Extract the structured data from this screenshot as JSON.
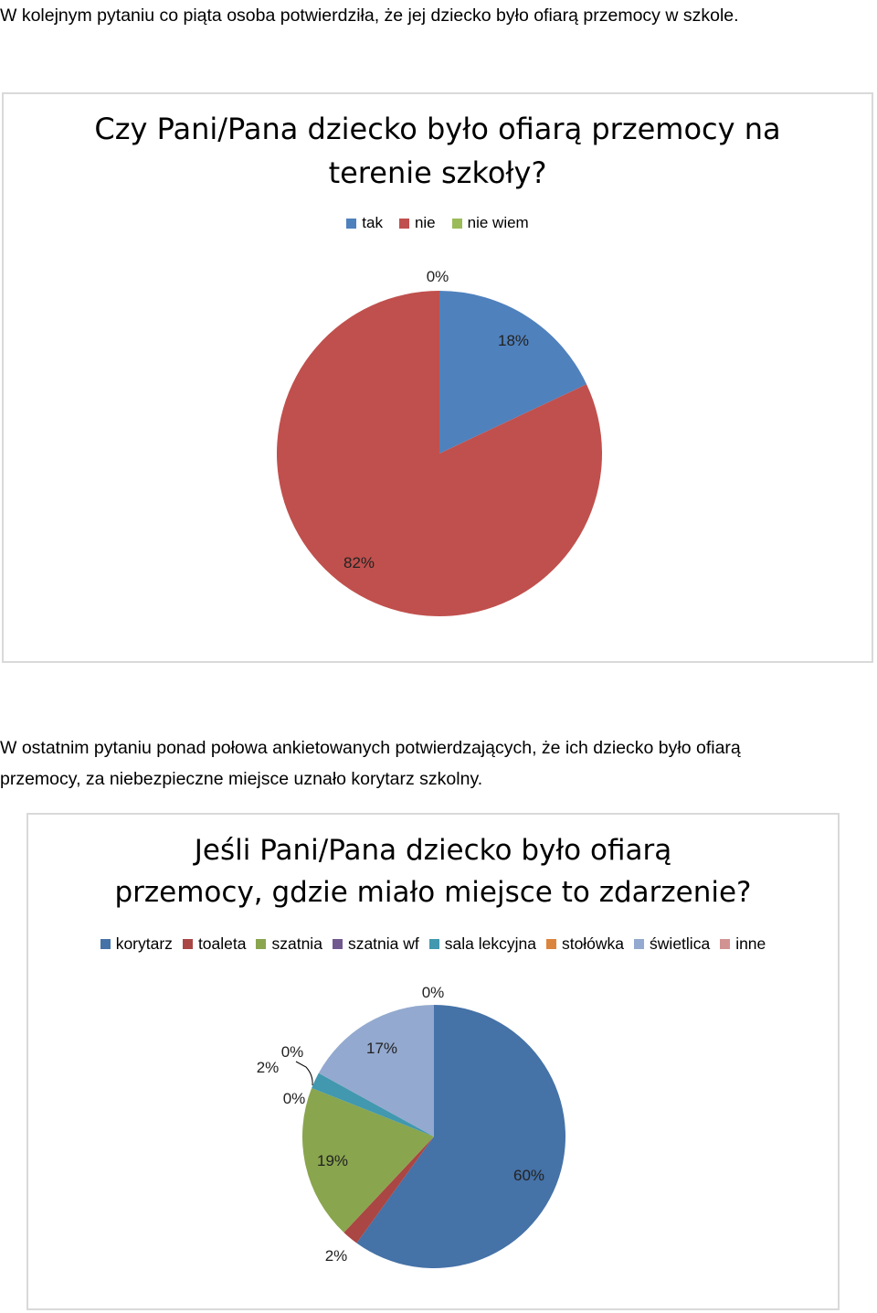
{
  "intro_text": "W kolejnym pytaniu co piąta osoba potwierdziła, że jej dziecko było ofiarą przemocy w szkole.",
  "between_text_line1": "W ostatnim pytaniu ponad połowa ankietowanych potwierdzających, że ich dziecko było ofiarą",
  "between_text_line2": "przemocy, za niebezpieczne miejsce uznało korytarz szkolny.",
  "chart_data": [
    {
      "type": "pie",
      "title_line1": "Czy Pani/Pana dziecko było ofiarą przemocy na",
      "title_line2": "terenie szkoły?",
      "categories": [
        "tak",
        "nie",
        "nie wiem"
      ],
      "values": [
        18,
        82,
        0
      ],
      "value_labels": [
        "18%",
        "82%",
        "0%"
      ],
      "colors": [
        "#4f81bd",
        "#c0504d",
        "#9bbb59"
      ],
      "legend_position": "top",
      "unit": "%"
    },
    {
      "type": "pie",
      "title_line1": "Jeśli Pani/Pana dziecko było ofiarą",
      "title_line2": "przemocy, gdzie miało miejsce to zdarzenie?",
      "categories": [
        "korytarz",
        "toaleta",
        "szatnia",
        "szatnia wf",
        "sala lekcyjna",
        "stołówka",
        "świetlica",
        "inne"
      ],
      "values": [
        60,
        2,
        19,
        0,
        2,
        0,
        17,
        0
      ],
      "value_labels": [
        "60%",
        "2%",
        "19%",
        "0%",
        "2%",
        "0%",
        "17%",
        "0%"
      ],
      "colors": [
        "#4572a7",
        "#aa4643",
        "#89a54e",
        "#71588f",
        "#4198af",
        "#db843d",
        "#93a9cf",
        "#d19392"
      ],
      "legend_position": "top",
      "unit": "%"
    }
  ]
}
